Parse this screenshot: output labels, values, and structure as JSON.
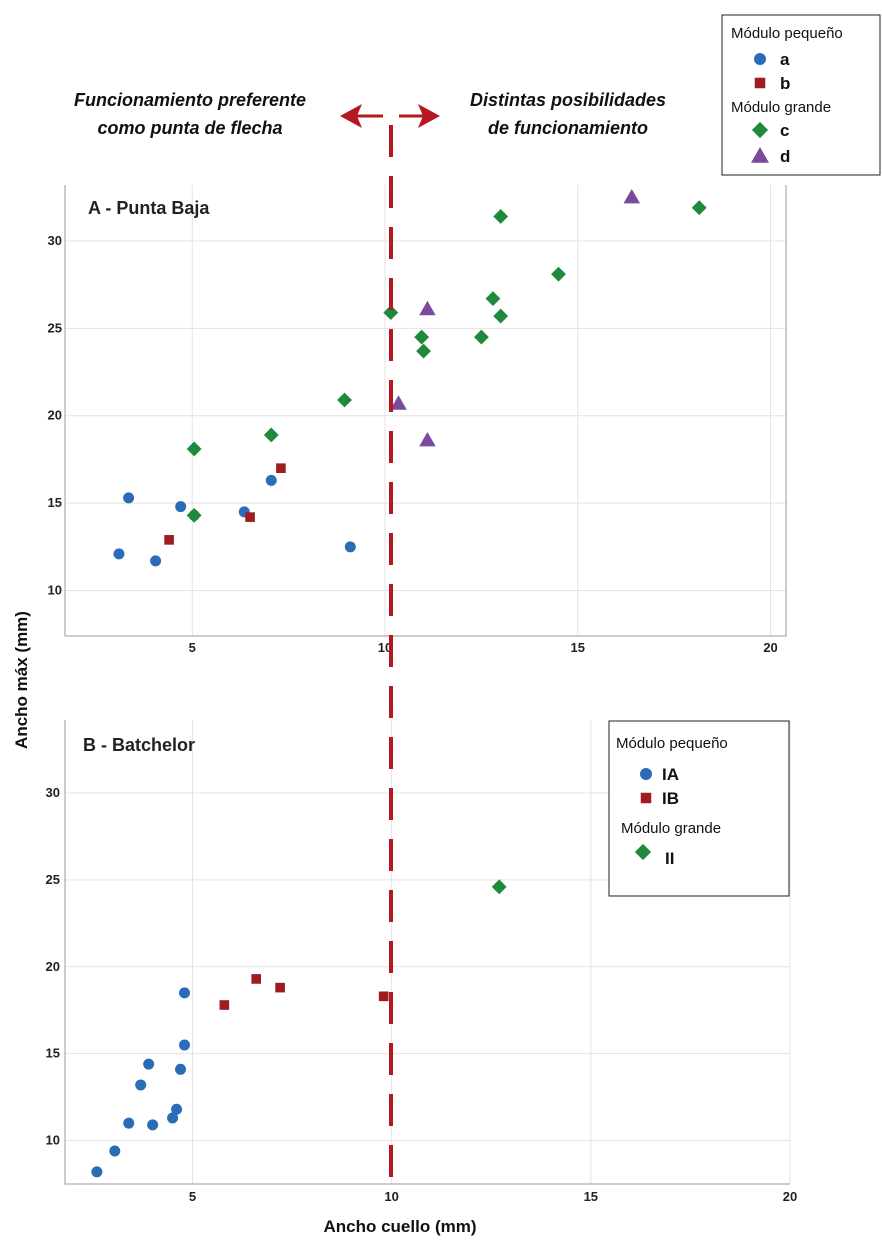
{
  "colors": {
    "a": "#2b6cb8",
    "b": "#9e1b1e",
    "c": "#1f8a3c",
    "d": "#7a4a9e",
    "divider": "#b5181e",
    "grid": "#e3e3e3"
  },
  "annotations": {
    "left_line1": "Funcionamiento preferente",
    "left_line2": "como punta de flecha",
    "right_line1": "Distintas posibilidades",
    "right_line2": "de funcionamiento"
  },
  "axis_titles": {
    "x": "Ancho cuello (mm)",
    "y": "Ancho máx (mm)"
  },
  "chart_data": [
    {
      "type": "scatter",
      "title": "A - Punta Baja",
      "xlabel": "Ancho cuello (mm)",
      "ylabel": "Ancho máx (mm)",
      "xlim": [
        1.7,
        20.4
      ],
      "ylim": [
        7.4,
        33.2
      ],
      "x_ticks": [
        "5",
        "10",
        "15",
        "20"
      ],
      "x_tick_values": [
        5,
        10,
        15,
        20
      ],
      "y_ticks": [
        "10",
        "15",
        "20",
        "25",
        "30"
      ],
      "y_tick_values": [
        10,
        15,
        20,
        25,
        30
      ],
      "divider_x": 10.2,
      "grid": true,
      "legend_placement": "top-right",
      "legend": {
        "group1": "Módulo pequeño",
        "group2": "Módulo grande",
        "items": [
          {
            "label": "a",
            "series": "a",
            "shape": "circle"
          },
          {
            "label": "b",
            "series": "b",
            "shape": "square"
          },
          {
            "label": "c",
            "series": "c",
            "shape": "diamond"
          },
          {
            "label": "d",
            "series": "d",
            "shape": "triangle"
          }
        ]
      },
      "series": [
        {
          "name": "a",
          "shape": "circle",
          "color_key": "a",
          "points": [
            [
              3.1,
              12.1
            ],
            [
              3.35,
              15.3
            ],
            [
              4.05,
              11.7
            ],
            [
              4.7,
              14.8
            ],
            [
              5.05,
              14.3
            ],
            [
              6.35,
              14.5
            ],
            [
              7.05,
              16.3
            ],
            [
              9.1,
              12.5
            ]
          ]
        },
        {
          "name": "b",
          "shape": "square",
          "color_key": "b",
          "points": [
            [
              4.4,
              12.9
            ],
            [
              6.5,
              14.2
            ],
            [
              7.3,
              17.0
            ]
          ]
        },
        {
          "name": "c",
          "shape": "diamond",
          "color_key": "c",
          "points": [
            [
              5.05,
              18.1
            ],
            [
              5.05,
              14.3
            ],
            [
              7.05,
              18.9
            ],
            [
              8.95,
              20.9
            ],
            [
              10.15,
              25.9
            ],
            [
              10.95,
              24.5
            ],
            [
              11.0,
              23.7
            ],
            [
              12.5,
              24.5
            ],
            [
              12.8,
              26.7
            ],
            [
              13.0,
              25.7
            ],
            [
              13.0,
              31.4
            ],
            [
              14.5,
              28.1
            ],
            [
              18.15,
              31.9
            ]
          ]
        },
        {
          "name": "d",
          "shape": "triangle",
          "color_key": "d",
          "points": [
            [
              10.35,
              20.7
            ],
            [
              11.1,
              26.1
            ],
            [
              11.1,
              18.6
            ],
            [
              16.4,
              32.5
            ]
          ]
        }
      ]
    },
    {
      "type": "scatter",
      "title": "B - Batchelor",
      "xlabel": "Ancho cuello (mm)",
      "ylabel": "Ancho máx (mm)",
      "xlim": [
        1.8,
        20.0
      ],
      "ylim": [
        7.5,
        34.2
      ],
      "x_ticks": [
        "5",
        "10",
        "15",
        "20"
      ],
      "x_tick_values": [
        5,
        10,
        15,
        20
      ],
      "y_ticks": [
        "10",
        "15",
        "20",
        "25",
        "30"
      ],
      "y_tick_values": [
        10,
        15,
        20,
        25,
        30
      ],
      "divider_x": 10.0,
      "grid": true,
      "legend_placement": "top-right",
      "legend": {
        "group1": "Módulo pequeño",
        "group2": "Módulo grande",
        "items": [
          {
            "label": "IA",
            "series": "IA",
            "shape": "circle"
          },
          {
            "label": "IB",
            "series": "IB",
            "shape": "square"
          },
          {
            "label": "II",
            "series": "II",
            "shape": "diamond"
          }
        ]
      },
      "series": [
        {
          "name": "IA",
          "shape": "circle",
          "color_key": "a",
          "points": [
            [
              2.6,
              8.2
            ],
            [
              3.05,
              9.4
            ],
            [
              3.4,
              11.0
            ],
            [
              3.7,
              13.2
            ],
            [
              3.9,
              14.4
            ],
            [
              4.0,
              10.9
            ],
            [
              4.5,
              11.3
            ],
            [
              4.6,
              11.8
            ],
            [
              4.7,
              14.1
            ],
            [
              4.8,
              15.5
            ],
            [
              4.8,
              18.5
            ]
          ]
        },
        {
          "name": "IB",
          "shape": "square",
          "color_key": "b",
          "points": [
            [
              5.8,
              17.8
            ],
            [
              6.6,
              19.3
            ],
            [
              7.2,
              18.8
            ],
            [
              9.8,
              18.3
            ]
          ]
        },
        {
          "name": "II",
          "shape": "diamond",
          "color_key": "c",
          "points": [
            [
              12.7,
              24.6
            ]
          ]
        }
      ]
    }
  ]
}
